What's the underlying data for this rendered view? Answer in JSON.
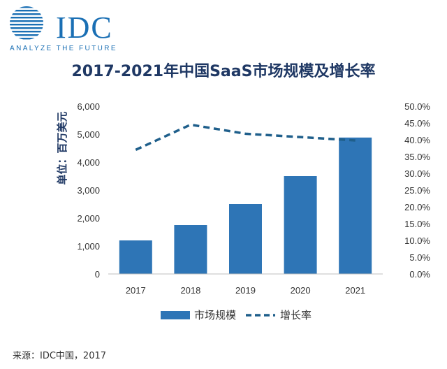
{
  "logo": {
    "text": "IDC",
    "tagline": "ANALYZE THE FUTURE",
    "color": "#1a6fb4"
  },
  "source": "来源：IDC中国，2017",
  "chart_data": {
    "type": "bar",
    "title": "2017-2021年中国SaaS市场规模及增长率",
    "ylabel": "单位：百万美元",
    "categories": [
      "2017",
      "2018",
      "2019",
      "2020",
      "2021"
    ],
    "ylim": [
      0,
      6000
    ],
    "y_ticks": [
      "0",
      "1,000",
      "2,000",
      "3,000",
      "4,000",
      "5,000",
      "6,000"
    ],
    "y2lim": [
      0,
      50
    ],
    "y2_ticks": [
      "0.0%",
      "5.0%",
      "10.0%",
      "15.0%",
      "20.0%",
      "25.0%",
      "30.0%",
      "35.0%",
      "40.0%",
      "45.0%",
      "50.0%"
    ],
    "series": [
      {
        "name": "市场规模",
        "type": "bar",
        "axis": "left",
        "values": [
          1200,
          1750,
          2500,
          3500,
          4880
        ],
        "color": "#2e75b6"
      },
      {
        "name": "增长率",
        "type": "line",
        "style": "dashed",
        "axis": "right",
        "values": [
          37.0,
          44.5,
          41.8,
          40.8,
          39.8
        ],
        "color": "#1f5f8b"
      }
    ],
    "grid": false,
    "legend": "bottom"
  }
}
